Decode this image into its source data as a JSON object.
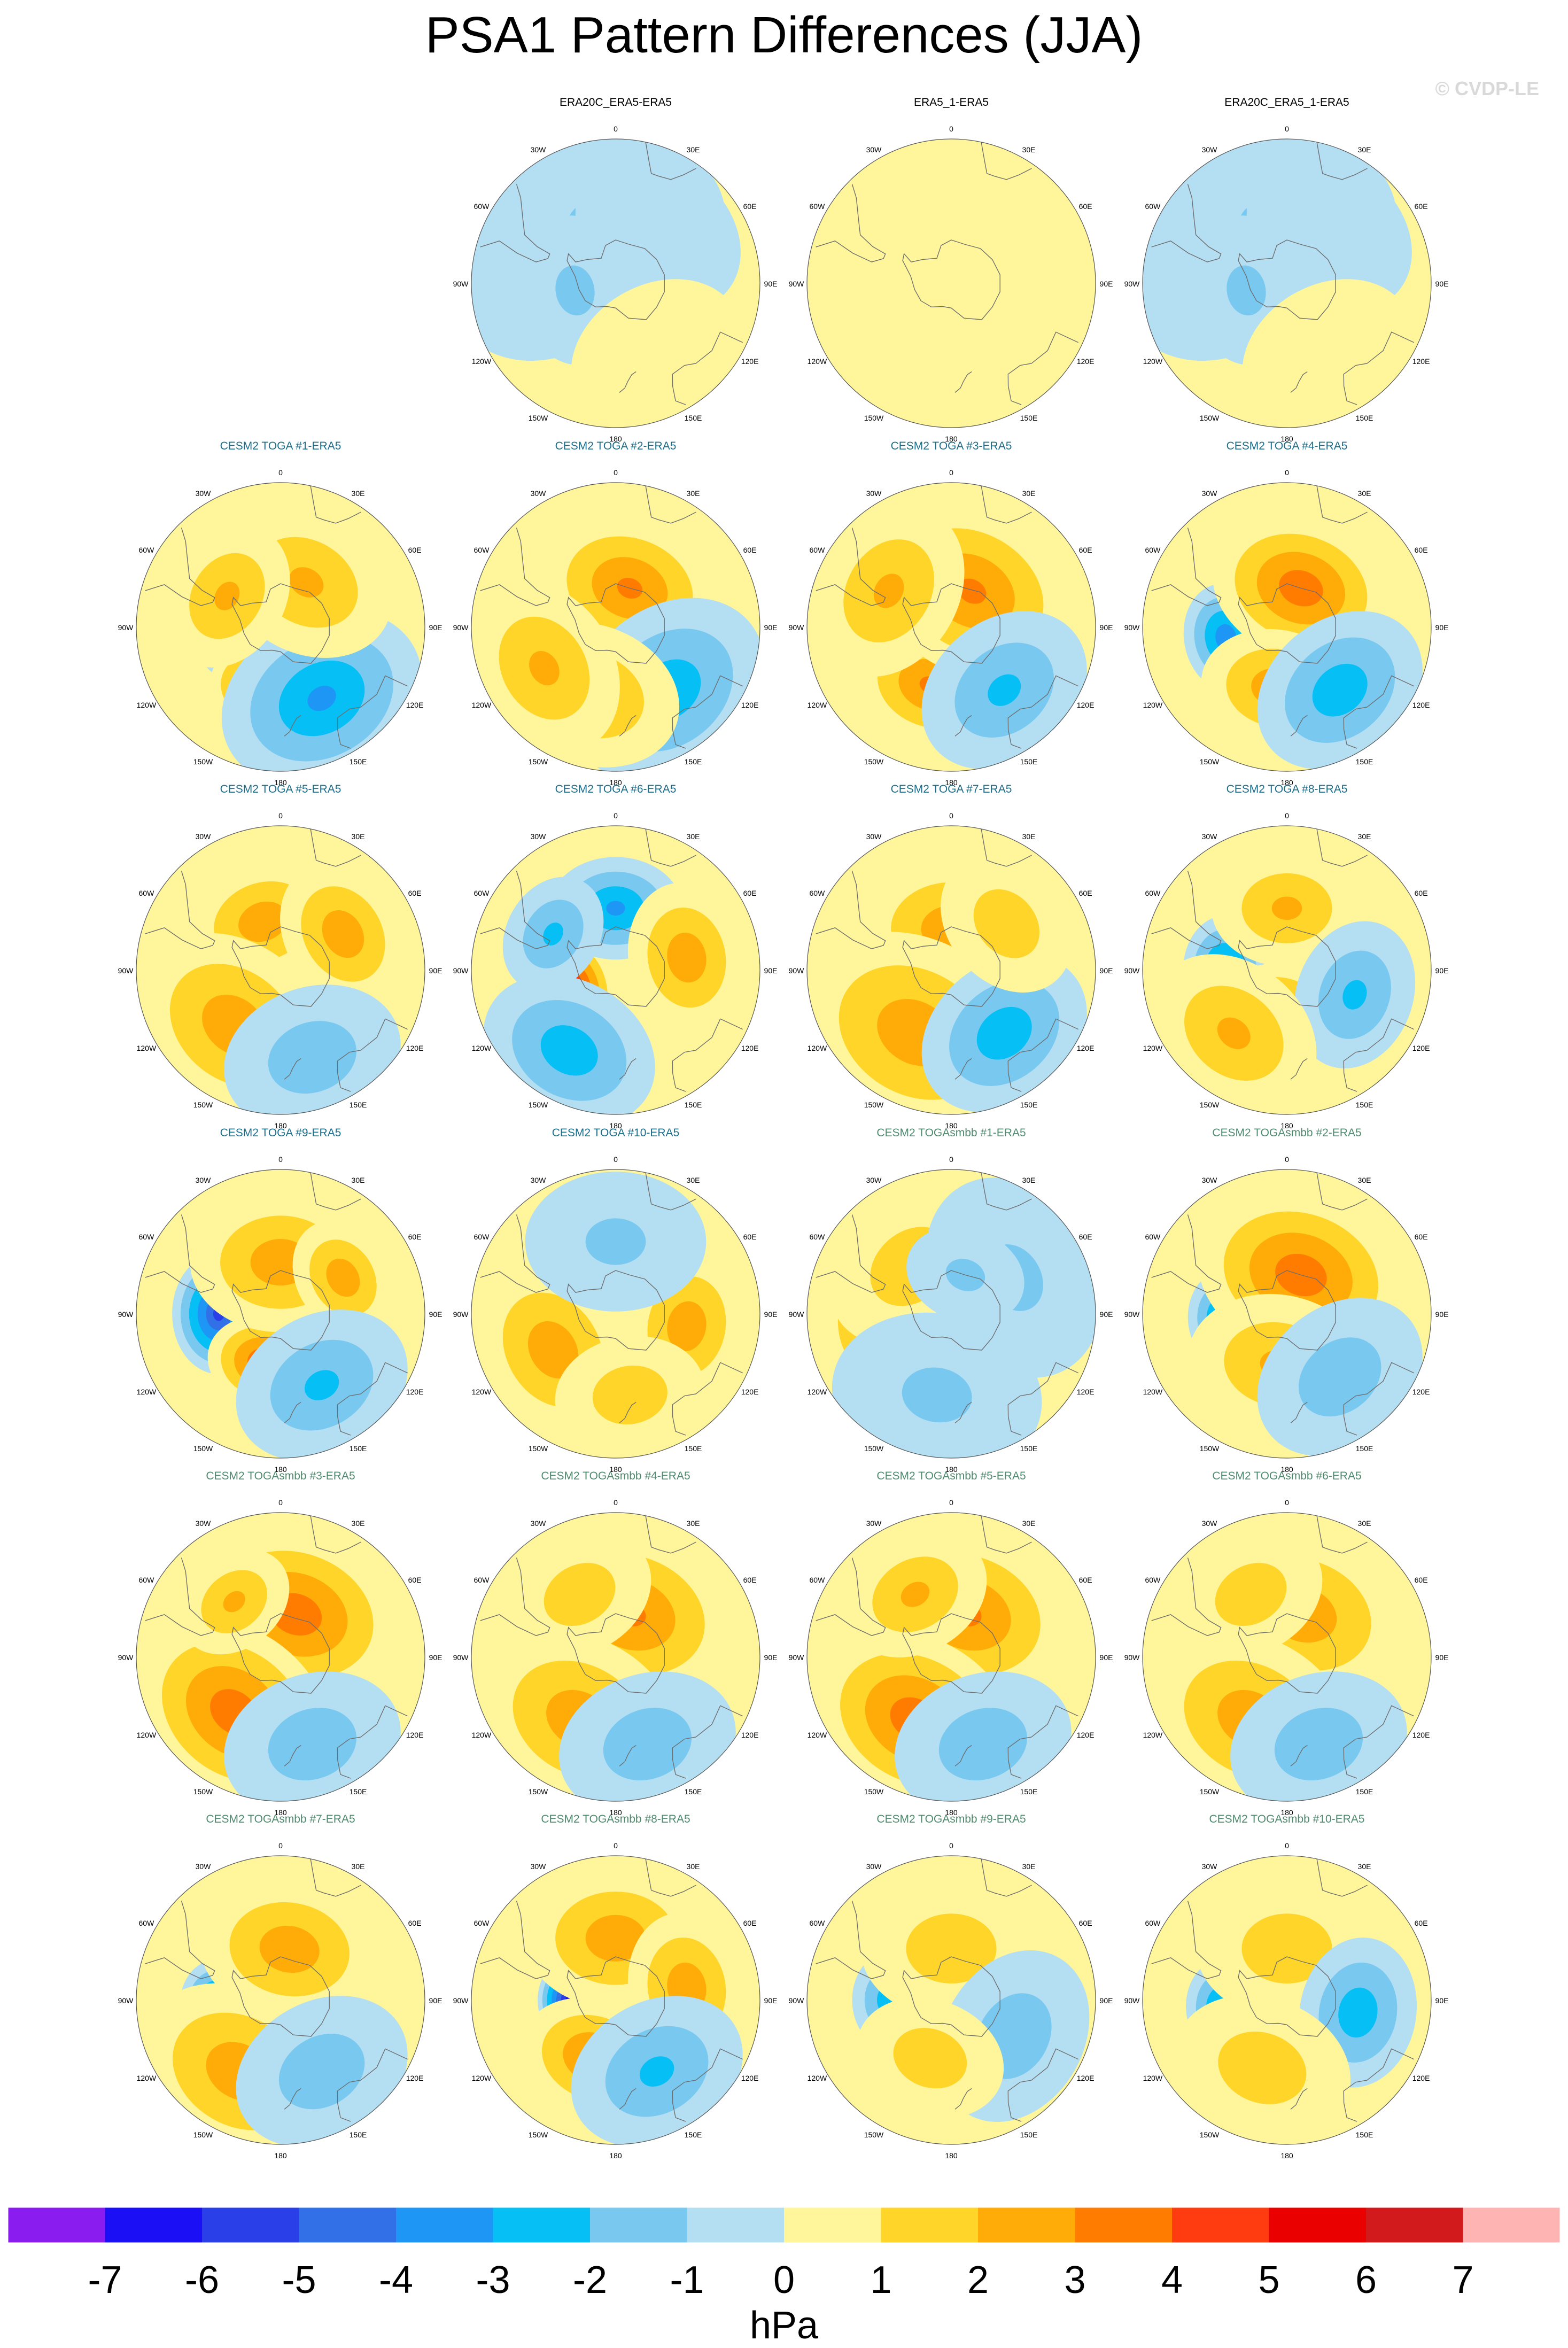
{
  "title": "PSA1 Pattern Differences (JJA)",
  "watermark": "© CVDP-LE",
  "chart_data": {
    "type": "heatmap",
    "projection": "polar-stereographic, southern hemisphere",
    "units": "hPa",
    "colorbar": {
      "tick_labels": [
        "-7",
        "-6",
        "-5",
        "-4",
        "-3",
        "-2",
        "-1",
        "0",
        "1",
        "2",
        "3",
        "4",
        "5",
        "6",
        "7"
      ],
      "colors": [
        "#8b1cf0",
        "#1a0ff5",
        "#2b3fe8",
        "#3270e8",
        "#1e96f5",
        "#05bff5",
        "#78c8f0",
        "#b4def2",
        "#fff59a",
        "#ffd52a",
        "#ffab08",
        "#ff7c00",
        "#ff3c10",
        "#eb0000",
        "#d2191c",
        "#ffb4b4"
      ]
    },
    "lon_labels": [
      "0",
      "30E",
      "60E",
      "90E",
      "120E",
      "150E",
      "180",
      "150W",
      "120W",
      "90W",
      "60W",
      "30W"
    ],
    "panels": [
      {
        "title": "ERA20C_ERA5-ERA5",
        "title_color": "#000000",
        "features": [
          [
            -50,
            -55,
            0.45,
            -1
          ],
          [
            -10,
            -62,
            0.4,
            -1
          ],
          [
            40,
            -58,
            0.3,
            -0.5
          ],
          [
            -100,
            -70,
            0.25,
            -1
          ],
          [
            150,
            -50,
            0.3,
            0.5
          ]
        ]
      },
      {
        "title": "ERA5_1-ERA5",
        "title_color": "#000000",
        "features": [
          [
            0,
            -60,
            0.5,
            0.5
          ],
          [
            120,
            -55,
            0.4,
            0.3
          ]
        ]
      },
      {
        "title": "ERA20C_ERA5_1-ERA5",
        "title_color": "#000000",
        "features": [
          [
            -50,
            -55,
            0.45,
            -1
          ],
          [
            -10,
            -62,
            0.4,
            -1
          ],
          [
            40,
            -58,
            0.3,
            -0.5
          ],
          [
            -100,
            -70,
            0.25,
            -1
          ],
          [
            150,
            -50,
            0.3,
            0.5
          ]
        ]
      },
      {
        "title": "CESM2 TOGA #1-ERA5",
        "title_color": "#1a6e8c",
        "features": [
          [
            -100,
            -65,
            0.15,
            -6.5
          ],
          [
            -170,
            -60,
            0.2,
            5
          ],
          [
            150,
            -50,
            0.35,
            -3
          ],
          [
            30,
            -65,
            0.3,
            2
          ],
          [
            -60,
            -60,
            0.25,
            2
          ]
        ]
      },
      {
        "title": "CESM2 TOGA #2-ERA5",
        "title_color": "#1a6e8c",
        "features": [
          [
            -95,
            -65,
            0.16,
            -4.5
          ],
          [
            20,
            -70,
            0.3,
            3
          ],
          [
            140,
            -50,
            0.35,
            -2.5
          ],
          [
            -160,
            -55,
            0.3,
            2
          ],
          [
            -120,
            -50,
            0.3,
            2
          ]
        ]
      },
      {
        "title": "CESM2 TOGA #3-ERA5",
        "title_color": "#1a6e8c",
        "features": [
          [
            -95,
            -65,
            0.16,
            -6
          ],
          [
            -160,
            -60,
            0.25,
            3
          ],
          [
            30,
            -70,
            0.35,
            3
          ],
          [
            140,
            -50,
            0.3,
            -2
          ],
          [
            -60,
            -55,
            0.3,
            2
          ]
        ]
      },
      {
        "title": "CESM2 TOGA #4-ERA5",
        "title_color": "#1a6e8c",
        "features": [
          [
            -100,
            -60,
            0.18,
            -3.5
          ],
          [
            20,
            -70,
            0.3,
            3.5
          ],
          [
            -170,
            -60,
            0.25,
            2.5
          ],
          [
            140,
            -50,
            0.3,
            -2.5
          ]
        ]
      },
      {
        "title": "CESM2 TOGA #5-ERA5",
        "title_color": "#1a6e8c",
        "features": [
          [
            -80,
            -65,
            0.16,
            -3.5
          ],
          [
            -20,
            -65,
            0.25,
            2.5
          ],
          [
            -140,
            -55,
            0.35,
            2.5
          ],
          [
            60,
            -55,
            0.25,
            2.5
          ],
          [
            160,
            -45,
            0.3,
            -1.5
          ]
        ]
      },
      {
        "title": "CESM2 TOGA #6-ERA5",
        "title_color": "#1a6e8c",
        "features": [
          [
            -110,
            -65,
            0.2,
            5.5
          ],
          [
            0,
            -60,
            0.22,
            -3
          ],
          [
            -150,
            -45,
            0.3,
            -2.5
          ],
          [
            80,
            -55,
            0.25,
            2.5
          ],
          [
            -60,
            -55,
            0.2,
            -2
          ]
        ]
      },
      {
        "title": "CESM2 TOGA #7-ERA5",
        "title_color": "#1a6e8c",
        "features": [
          [
            -80,
            -65,
            0.16,
            -5
          ],
          [
            0,
            -70,
            0.3,
            2.5
          ],
          [
            -150,
            -55,
            0.4,
            2.5
          ],
          [
            140,
            -50,
            0.3,
            -2.5
          ],
          [
            50,
            -55,
            0.25,
            1.5
          ]
        ]
      },
      {
        "title": "CESM2 TOGA #8-ERA5",
        "title_color": "#1a6e8c",
        "features": [
          [
            -90,
            -60,
            0.18,
            -3.5
          ],
          [
            -170,
            -70,
            0.2,
            3
          ],
          [
            0,
            -60,
            0.25,
            2
          ],
          [
            110,
            -55,
            0.25,
            -2
          ],
          [
            -140,
            -50,
            0.3,
            2
          ]
        ]
      },
      {
        "title": "CESM2 TOGA #9-ERA5",
        "title_color": "#1a6e8c",
        "features": [
          [
            -90,
            -60,
            0.2,
            -5
          ],
          [
            -165,
            -65,
            0.2,
            4
          ],
          [
            0,
            -65,
            0.3,
            2.5
          ],
          [
            60,
            -55,
            0.2,
            2.5
          ],
          [
            150,
            -50,
            0.3,
            -2
          ]
        ]
      },
      {
        "title": "CESM2 TOGA #10-ERA5",
        "title_color": "#1a6e8c",
        "features": [
          [
            -70,
            -70,
            0.15,
            -2.5
          ],
          [
            -120,
            -55,
            0.3,
            2.5
          ],
          [
            100,
            -55,
            0.25,
            2.5
          ],
          [
            170,
            -50,
            0.25,
            1.5
          ],
          [
            0,
            -55,
            0.3,
            -1
          ]
        ]
      },
      {
        "title": "CESM2 TOGAsmbb #1-ERA5",
        "title_color": "#4f8a6e",
        "features": [
          [
            -100,
            -55,
            0.3,
            2
          ],
          [
            -40,
            -60,
            0.3,
            1.5
          ],
          [
            60,
            -55,
            0.35,
            -1
          ],
          [
            -170,
            -50,
            0.35,
            -1
          ],
          [
            20,
            -70,
            0.2,
            -1
          ]
        ]
      },
      {
        "title": "CESM2 TOGAsmbb #2-ERA5",
        "title_color": "#4f8a6e",
        "features": [
          [
            -95,
            -60,
            0.16,
            -3.5
          ],
          [
            20,
            -70,
            0.35,
            3.5
          ],
          [
            -170,
            -65,
            0.3,
            2
          ],
          [
            140,
            -50,
            0.3,
            -1.5
          ]
        ]
      },
      {
        "title": "CESM2 TOGAsmbb #3-ERA5",
        "title_color": "#4f8a6e",
        "features": [
          [
            -90,
            -65,
            0.16,
            -4.5
          ],
          [
            20,
            -68,
            0.35,
            3.5
          ],
          [
            -140,
            -55,
            0.35,
            3.5
          ],
          [
            160,
            -45,
            0.3,
            -1.5
          ],
          [
            -40,
            -55,
            0.2,
            2
          ]
        ]
      },
      {
        "title": "CESM2 TOGAsmbb #4-ERA5",
        "title_color": "#4f8a6e",
        "features": [
          [
            -90,
            -65,
            0.16,
            -4
          ],
          [
            20,
            -68,
            0.35,
            3
          ],
          [
            -150,
            -55,
            0.35,
            2.5
          ],
          [
            160,
            -45,
            0.3,
            -1.5
          ],
          [
            -30,
            -55,
            0.25,
            1.5
          ]
        ]
      },
      {
        "title": "CESM2 TOGAsmbb #5-ERA5",
        "title_color": "#4f8a6e",
        "features": [
          [
            -90,
            -65,
            0.15,
            -6
          ],
          [
            20,
            -68,
            0.35,
            3
          ],
          [
            -150,
            -55,
            0.35,
            3.5
          ],
          [
            160,
            -45,
            0.3,
            -1.5
          ],
          [
            -30,
            -55,
            0.25,
            2
          ]
        ]
      },
      {
        "title": "CESM2 TOGAsmbb #6-ERA5",
        "title_color": "#4f8a6e",
        "features": [
          [
            -90,
            -65,
            0.16,
            -5.5
          ],
          [
            20,
            -68,
            0.35,
            2.5
          ],
          [
            -150,
            -55,
            0.35,
            2.5
          ],
          [
            160,
            -45,
            0.3,
            -1.5
          ],
          [
            -30,
            -55,
            0.25,
            1.5
          ]
        ]
      },
      {
        "title": "CESM2 TOGAsmbb #7-ERA5",
        "title_color": "#4f8a6e",
        "features": [
          [
            -100,
            -60,
            0.17,
            -4.5
          ],
          [
            10,
            -65,
            0.3,
            2.5
          ],
          [
            -150,
            -50,
            0.35,
            2.5
          ],
          [
            150,
            -50,
            0.3,
            -1.5
          ]
        ]
      },
      {
        "title": "CESM2 TOGAsmbb #8-ERA5",
        "title_color": "#4f8a6e",
        "features": [
          [
            -90,
            -68,
            0.14,
            -6.5
          ],
          [
            -160,
            -60,
            0.25,
            3
          ],
          [
            0,
            -60,
            0.3,
            2.5
          ],
          [
            80,
            -55,
            0.25,
            2.5
          ],
          [
            150,
            -50,
            0.3,
            -2
          ]
        ]
      },
      {
        "title": "CESM2 TOGAsmbb #9-ERA5",
        "title_color": "#4f8a6e",
        "features": [
          [
            -90,
            -60,
            0.16,
            -2.5
          ],
          [
            0,
            -65,
            0.3,
            1.5
          ],
          [
            120,
            -55,
            0.3,
            -1.5
          ],
          [
            -160,
            -60,
            0.25,
            1.5
          ]
        ]
      },
      {
        "title": "CESM2 TOGAsmbb #10-ERA5",
        "title_color": "#4f8a6e",
        "features": [
          [
            -100,
            -60,
            0.17,
            -3.5
          ],
          [
            0,
            -65,
            0.3,
            1.5
          ],
          [
            100,
            -55,
            0.25,
            -2.5
          ],
          [
            -160,
            -55,
            0.3,
            1.5
          ]
        ]
      }
    ]
  }
}
